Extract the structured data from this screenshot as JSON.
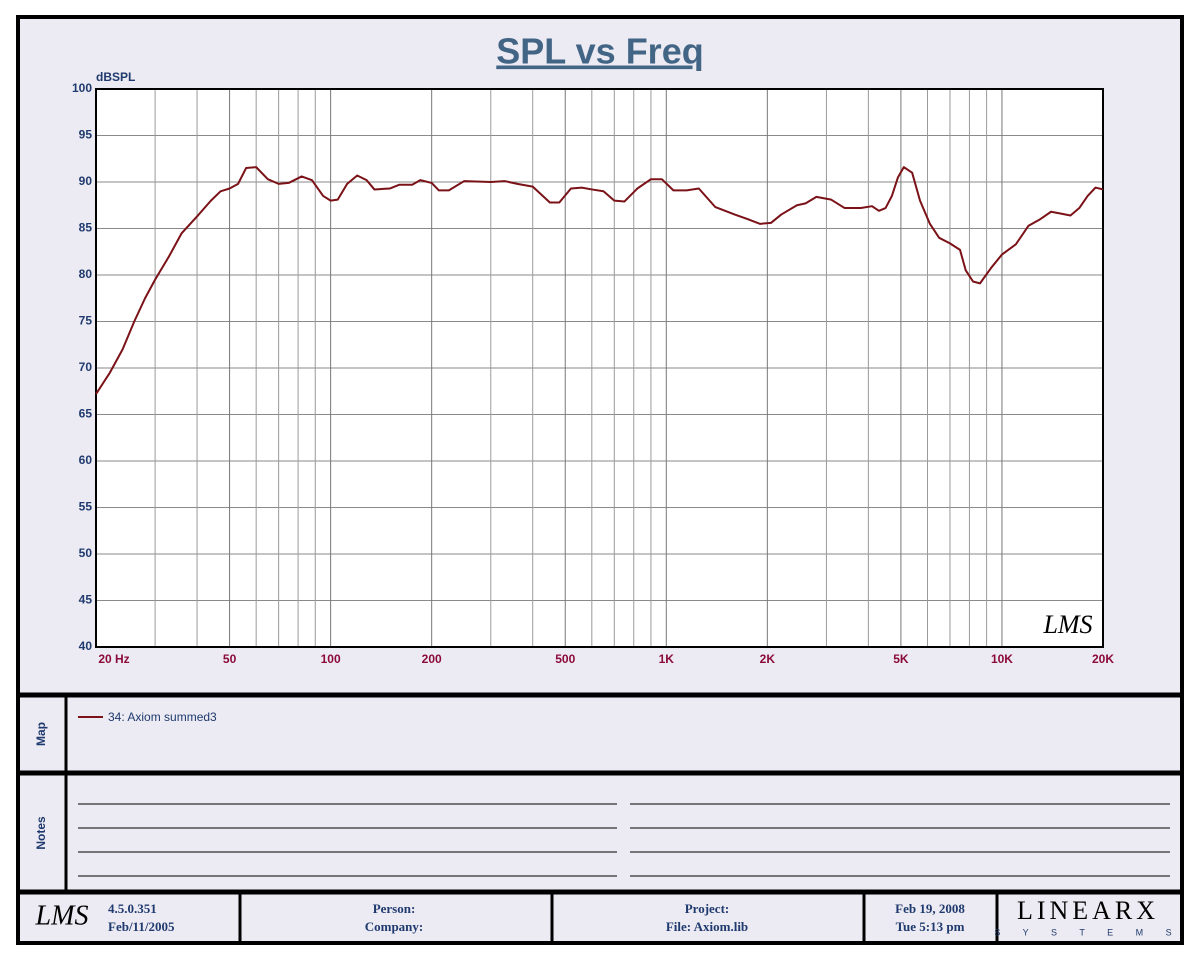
{
  "chart_data": {
    "type": "line",
    "title": "SPL vs Freq",
    "y_label": "dBSPL",
    "xscale": "log",
    "grid": true,
    "xlim": [
      20,
      20000
    ],
    "ylim": [
      40,
      100
    ],
    "xticks": [
      {
        "value": 20,
        "label": "20  Hz"
      },
      50,
      100,
      200,
      500,
      {
        "value": 1000,
        "label": "1K"
      },
      {
        "value": 2000,
        "label": "2K"
      },
      {
        "value": 5000,
        "label": "5K"
      },
      {
        "value": 10000,
        "label": "10K"
      },
      {
        "value": 20000,
        "label": "20K"
      }
    ],
    "xminorticks": [
      30,
      40,
      60,
      70,
      80,
      90,
      300,
      400,
      600,
      700,
      800,
      900,
      3000,
      4000,
      6000,
      7000,
      8000,
      9000
    ],
    "yticks": [
      40,
      45,
      50,
      55,
      60,
      65,
      70,
      75,
      80,
      85,
      90,
      95,
      100
    ],
    "x": [
      20,
      22,
      24,
      26,
      28,
      30,
      33,
      36,
      40,
      44,
      47,
      50,
      53,
      56,
      60,
      65,
      70,
      75,
      82,
      88,
      95,
      100,
      105,
      112,
      120,
      128,
      135,
      150,
      160,
      175,
      185,
      200,
      210,
      225,
      250,
      300,
      330,
      360,
      400,
      450,
      480,
      520,
      560,
      600,
      650,
      700,
      750,
      820,
      900,
      970,
      1050,
      1150,
      1250,
      1400,
      1600,
      1750,
      1900,
      2050,
      2200,
      2450,
      2600,
      2800,
      3100,
      3400,
      3800,
      4100,
      4300,
      4500,
      4700,
      4900,
      5100,
      5400,
      5700,
      6100,
      6500,
      7000,
      7500,
      7800,
      8200,
      8600,
      9300,
      10000,
      11000,
      12000,
      13000,
      14000,
      15000,
      16000,
      17000,
      18000,
      19000,
      20000
    ],
    "series": [
      {
        "name": "34: Axiom summed3",
        "color": "#7a1218",
        "values": [
          67.2,
          69.5,
          72,
          75,
          77.5,
          79.5,
          82,
          84.5,
          86.3,
          88,
          89,
          89.3,
          89.8,
          91.5,
          91.6,
          90.3,
          89.8,
          89.9,
          90.6,
          90.2,
          88.5,
          88,
          88.1,
          89.8,
          90.7,
          90.2,
          89.2,
          89.3,
          89.7,
          89.7,
          90.2,
          89.9,
          89.1,
          89.1,
          90.1,
          90.0,
          90.1,
          89.8,
          89.5,
          87.8,
          87.8,
          89.3,
          89.4,
          89.2,
          89.0,
          88.0,
          87.9,
          89.3,
          90.3,
          90.3,
          89.1,
          89.1,
          89.3,
          87.3,
          86.5,
          86.0,
          85.5,
          85.6,
          86.5,
          87.5,
          87.7,
          88.4,
          88.1,
          87.2,
          87.2,
          87.4,
          86.9,
          87.2,
          88.5,
          90.5,
          91.6,
          91.0,
          88,
          85.5,
          84,
          83.4,
          82.7,
          80.5,
          79.3,
          79.1,
          80.8,
          82.2,
          83.3,
          85.3,
          86.0,
          86.8,
          86.6,
          86.4,
          87.2,
          88.5,
          89.4,
          89.2
        ]
      }
    ],
    "watermark": "LMS"
  },
  "map": {
    "label": "Map"
  },
  "notes": {
    "label": "Notes"
  },
  "footer": {
    "logo": "LMS",
    "version": "4.5.0.351",
    "build_date": "Feb/11/2005",
    "person": "Person:",
    "company": "Company:",
    "project": "Project:",
    "file": "File: Axiom.lib",
    "date": "Feb 19, 2008",
    "time": "Tue  5:13 pm",
    "brand": "LINEARX",
    "brand_sub": "S Y S T E M S"
  }
}
